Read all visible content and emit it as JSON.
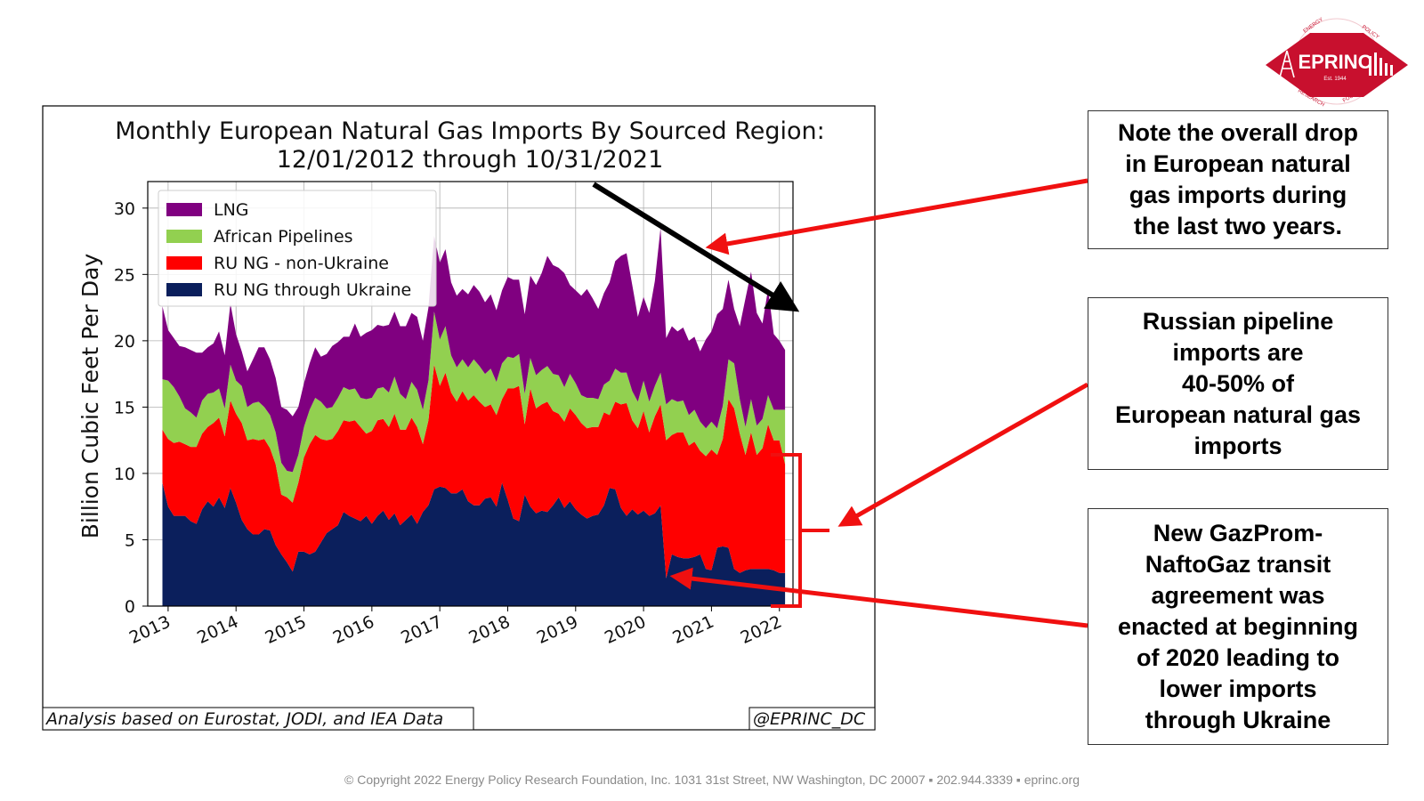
{
  "logo": {
    "name": "EPRINC",
    "est": "Est. 1944",
    "ring_text": [
      "ENERGY",
      "POLICY",
      "RESEARCH",
      "FOUNDATION INC."
    ],
    "colors": {
      "red": "#c8102e",
      "white": "#ffffff"
    },
    "icons": [
      "oil-derrick-icon",
      "refinery-icon"
    ]
  },
  "notes": {
    "overall_drop": [
      "Note the overall drop",
      "in European natural",
      "gas imports during",
      "the last two years."
    ],
    "russian_share": [
      "Russian pipeline",
      "imports are",
      "40-50% of",
      "European natural gas",
      "imports"
    ],
    "transit_agreement": [
      "New GazProm-",
      "NaftoGaz transit",
      "agreement was",
      "enacted at beginning",
      "of 2020 leading to",
      "lower imports",
      "through Ukraine"
    ]
  },
  "footer": "© Copyright 2022 Energy Policy Research Foundation, Inc. 1031 31st Street, NW Washington, DC 20007 ▪ 202.944.3339 ▪ eprinc.org",
  "annotation_colors": {
    "arrow_red": "#f01010",
    "trend_arrow": "#000000",
    "bracket_red": "#f01010"
  },
  "chart_data": {
    "type": "area",
    "stacked": true,
    "title": [
      "Monthly European Natural Gas Imports By Sourced Region:",
      "12/01/2012 through 10/31/2021"
    ],
    "xlabel": "",
    "ylabel": "Billion Cubic Feet Per Day",
    "x_tick_labels": [
      "2013",
      "2014",
      "2015",
      "2016",
      "2017",
      "2018",
      "2019",
      "2020",
      "2021",
      "2022"
    ],
    "x_range_years": [
      2012.7,
      2022.2
    ],
    "y_ticks": [
      0,
      5,
      10,
      15,
      20,
      25,
      30
    ],
    "ylim": [
      0,
      32
    ],
    "grid": true,
    "legend_position": "top-left",
    "source_note": "Analysis based on Eurostat, JODI, and IEA Data",
    "handle": "@EPRINC_DC",
    "x_start": "2012-12",
    "x_end": "2021-10",
    "x_step": "monthly",
    "series": [
      {
        "name": "RU NG through Ukraine",
        "color": "#0b1f5c",
        "values": [
          9.3,
          7.5,
          6.8,
          6.8,
          6.8,
          6.4,
          6.2,
          7.3,
          7.9,
          7.5,
          8.2,
          7.4,
          8.9,
          7.8,
          6.5,
          5.8,
          5.4,
          5.4,
          5.8,
          5.7,
          4.6,
          3.9,
          3.3,
          2.6,
          4.1,
          4.1,
          3.9,
          4.1,
          4.8,
          5.5,
          5.8,
          6.1,
          7.1,
          6.8,
          6.6,
          6.4,
          6.8,
          6.2,
          6.8,
          7.2,
          6.5,
          7.0,
          6.1,
          6.5,
          6.9,
          6.2,
          7.1,
          7.6,
          8.8,
          9.0,
          8.9,
          8.5,
          8.5,
          8.8,
          7.9,
          7.6,
          7.6,
          8.1,
          8.2,
          7.5,
          9.3,
          8.0,
          6.6,
          6.4,
          8.4,
          7.5,
          7.0,
          7.2,
          7.1,
          7.6,
          8.2,
          7.4,
          7.9,
          7.3,
          6.9,
          6.6,
          6.8,
          6.9,
          7.6,
          8.9,
          8.8,
          7.4,
          6.8,
          7.3,
          6.9,
          7.2,
          6.8,
          7.0,
          7.6,
          2.1,
          3.9,
          3.7,
          3.6,
          3.6,
          3.7,
          3.9,
          2.8,
          2.7,
          4.4,
          4.5,
          4.4,
          2.8,
          2.5,
          2.7,
          2.8,
          2.8,
          2.8,
          2.8,
          2.7,
          2.5,
          2.5
        ]
      },
      {
        "name": "RU NG - non-Ukraine",
        "color": "#ff0000",
        "values": [
          4.0,
          5.1,
          5.5,
          5.6,
          5.4,
          5.6,
          5.8,
          5.7,
          5.6,
          6.3,
          6.0,
          5.4,
          6.6,
          6.7,
          7.3,
          6.7,
          7.2,
          7.1,
          6.8,
          6.2,
          6.1,
          4.5,
          4.9,
          5.2,
          5.2,
          7.1,
          8.3,
          8.8,
          7.8,
          7.0,
          6.8,
          7.1,
          6.9,
          7.1,
          7.4,
          7.1,
          6.2,
          7.0,
          7.2,
          6.9,
          7.0,
          7.5,
          7.2,
          6.8,
          7.3,
          7.3,
          5.1,
          6.4,
          9.4,
          7.6,
          8.7,
          7.6,
          6.9,
          7.4,
          7.6,
          8.3,
          7.8,
          6.9,
          7.0,
          6.9,
          6.3,
          8.4,
          9.8,
          10.2,
          5.3,
          8.9,
          7.9,
          8.0,
          8.3,
          7.1,
          6.3,
          6.5,
          7.0,
          7.1,
          6.9,
          6.8,
          6.7,
          6.6,
          7.0,
          5.5,
          6.6,
          7.8,
          8.5,
          6.7,
          6.5,
          7.5,
          6.3,
          7.3,
          7.6,
          10.4,
          9.0,
          9.4,
          9.5,
          8.5,
          8.7,
          7.8,
          8.5,
          9.1,
          7.0,
          8.1,
          11.2,
          12.1,
          10.5,
          8.7,
          10.3,
          8.6,
          9.1,
          10.9,
          9.8,
          10.0,
          8.2
        ]
      },
      {
        "name": "African Pipelines",
        "color": "#92d050",
        "values": [
          3.8,
          4.4,
          4.2,
          3.4,
          2.7,
          2.6,
          2.2,
          2.5,
          2.5,
          2.3,
          2.2,
          2.1,
          2.7,
          2.5,
          2.8,
          2.5,
          2.7,
          2.9,
          2.4,
          2.5,
          2.4,
          2.4,
          2.0,
          2.3,
          2.1,
          2.3,
          2.6,
          2.8,
          2.8,
          2.4,
          2.4,
          2.5,
          2.5,
          2.4,
          2.4,
          2.2,
          2.6,
          2.5,
          2.4,
          2.4,
          2.6,
          2.8,
          2.7,
          2.3,
          2.7,
          2.8,
          2.6,
          3.0,
          4.0,
          3.5,
          3.5,
          2.8,
          2.6,
          2.4,
          2.5,
          2.7,
          2.7,
          2.5,
          2.7,
          2.5,
          2.7,
          2.4,
          2.3,
          2.4,
          2.3,
          2.3,
          2.5,
          2.6,
          2.7,
          2.8,
          2.9,
          2.6,
          2.6,
          2.4,
          2.1,
          2.3,
          2.2,
          2.1,
          2.1,
          2.6,
          2.5,
          2.4,
          2.3,
          2.2,
          2.0,
          2.3,
          2.3,
          2.3,
          2.4,
          2.7,
          2.7,
          2.3,
          2.4,
          2.3,
          2.4,
          2.2,
          2.1,
          2.1,
          2.0,
          2.5,
          3.0,
          3.4,
          2.6,
          2.1,
          2.5,
          2.2,
          2.2,
          2.2,
          2.3,
          2.3,
          4.1
        ]
      },
      {
        "name": "LNG",
        "color": "#800080",
        "values": [
          5.5,
          3.8,
          3.7,
          3.8,
          4.6,
          4.7,
          4.9,
          3.6,
          3.5,
          3.7,
          4.3,
          4.0,
          4.6,
          3.5,
          2.6,
          2.7,
          3.3,
          4.1,
          4.5,
          4.2,
          4.1,
          4.2,
          4.6,
          4.2,
          3.6,
          3.3,
          3.5,
          3.8,
          3.4,
          4.1,
          4.6,
          4.2,
          3.8,
          4.0,
          4.9,
          4.6,
          5.0,
          5.1,
          4.8,
          4.6,
          5.1,
          4.9,
          5.1,
          5.5,
          5.2,
          5.5,
          5.2,
          5.5,
          5.7,
          5.8,
          5.8,
          5.5,
          5.4,
          5.3,
          5.5,
          5.6,
          5.6,
          5.4,
          5.6,
          5.4,
          5.5,
          6.0,
          5.9,
          5.6,
          6.0,
          6.2,
          6.8,
          7.3,
          8.3,
          8.2,
          8.1,
          8.6,
          6.7,
          7.0,
          7.5,
          8.2,
          7.5,
          6.8,
          6.9,
          7.4,
          8.1,
          8.8,
          9.0,
          8.0,
          6.4,
          6.3,
          6.7,
          7.9,
          10.9,
          5.0,
          5.5,
          5.3,
          5.5,
          5.6,
          5.5,
          5.3,
          6.7,
          6.8,
          8.6,
          7.3,
          6.0,
          4.1,
          5.5,
          9.7,
          9.6,
          8.5,
          7.2,
          8.0,
          5.7,
          5.2,
          4.5
        ]
      }
    ]
  }
}
